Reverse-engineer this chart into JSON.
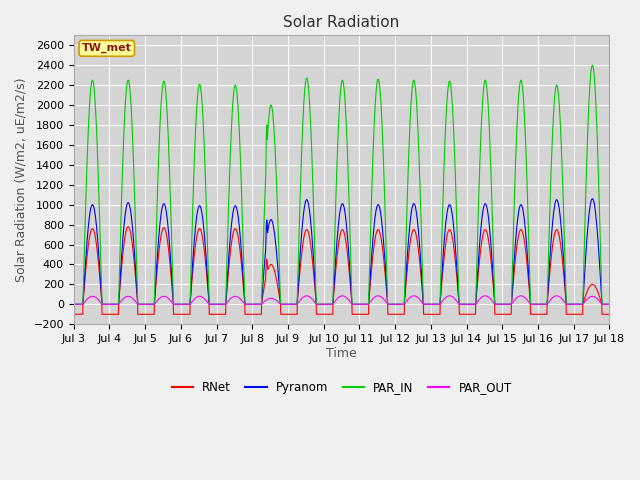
{
  "title": "Solar Radiation",
  "ylabel": "Solar Radiation (W/m2, uE/m2/s)",
  "xlabel": "Time",
  "ylim": [
    -200,
    2700
  ],
  "yticks": [
    -200,
    0,
    200,
    400,
    600,
    800,
    1000,
    1200,
    1400,
    1600,
    1800,
    2000,
    2200,
    2400,
    2600
  ],
  "xtick_labels": [
    "Jul 3",
    "Jul 4",
    "Jul 5",
    "Jul 6",
    "Jul 7",
    "Jul 8",
    "Jul 9",
    "Jul 10",
    "Jul 11",
    "Jul 12",
    "Jul 13",
    "Jul 14",
    "Jul 15",
    "Jul 16",
    "Jul 17",
    "Jul 18"
  ],
  "annotation_text": "TW_met",
  "colors": {
    "RNet": "#ff0000",
    "Pyranom": "#0000ff",
    "PAR_IN": "#00cc00",
    "PAR_OUT": "#ff00ff"
  },
  "fig_bg": "#f0f0f0",
  "plot_bg": "#d4d4d4",
  "title_fontsize": 11,
  "tick_fontsize": 8,
  "axis_label_fontsize": 9
}
